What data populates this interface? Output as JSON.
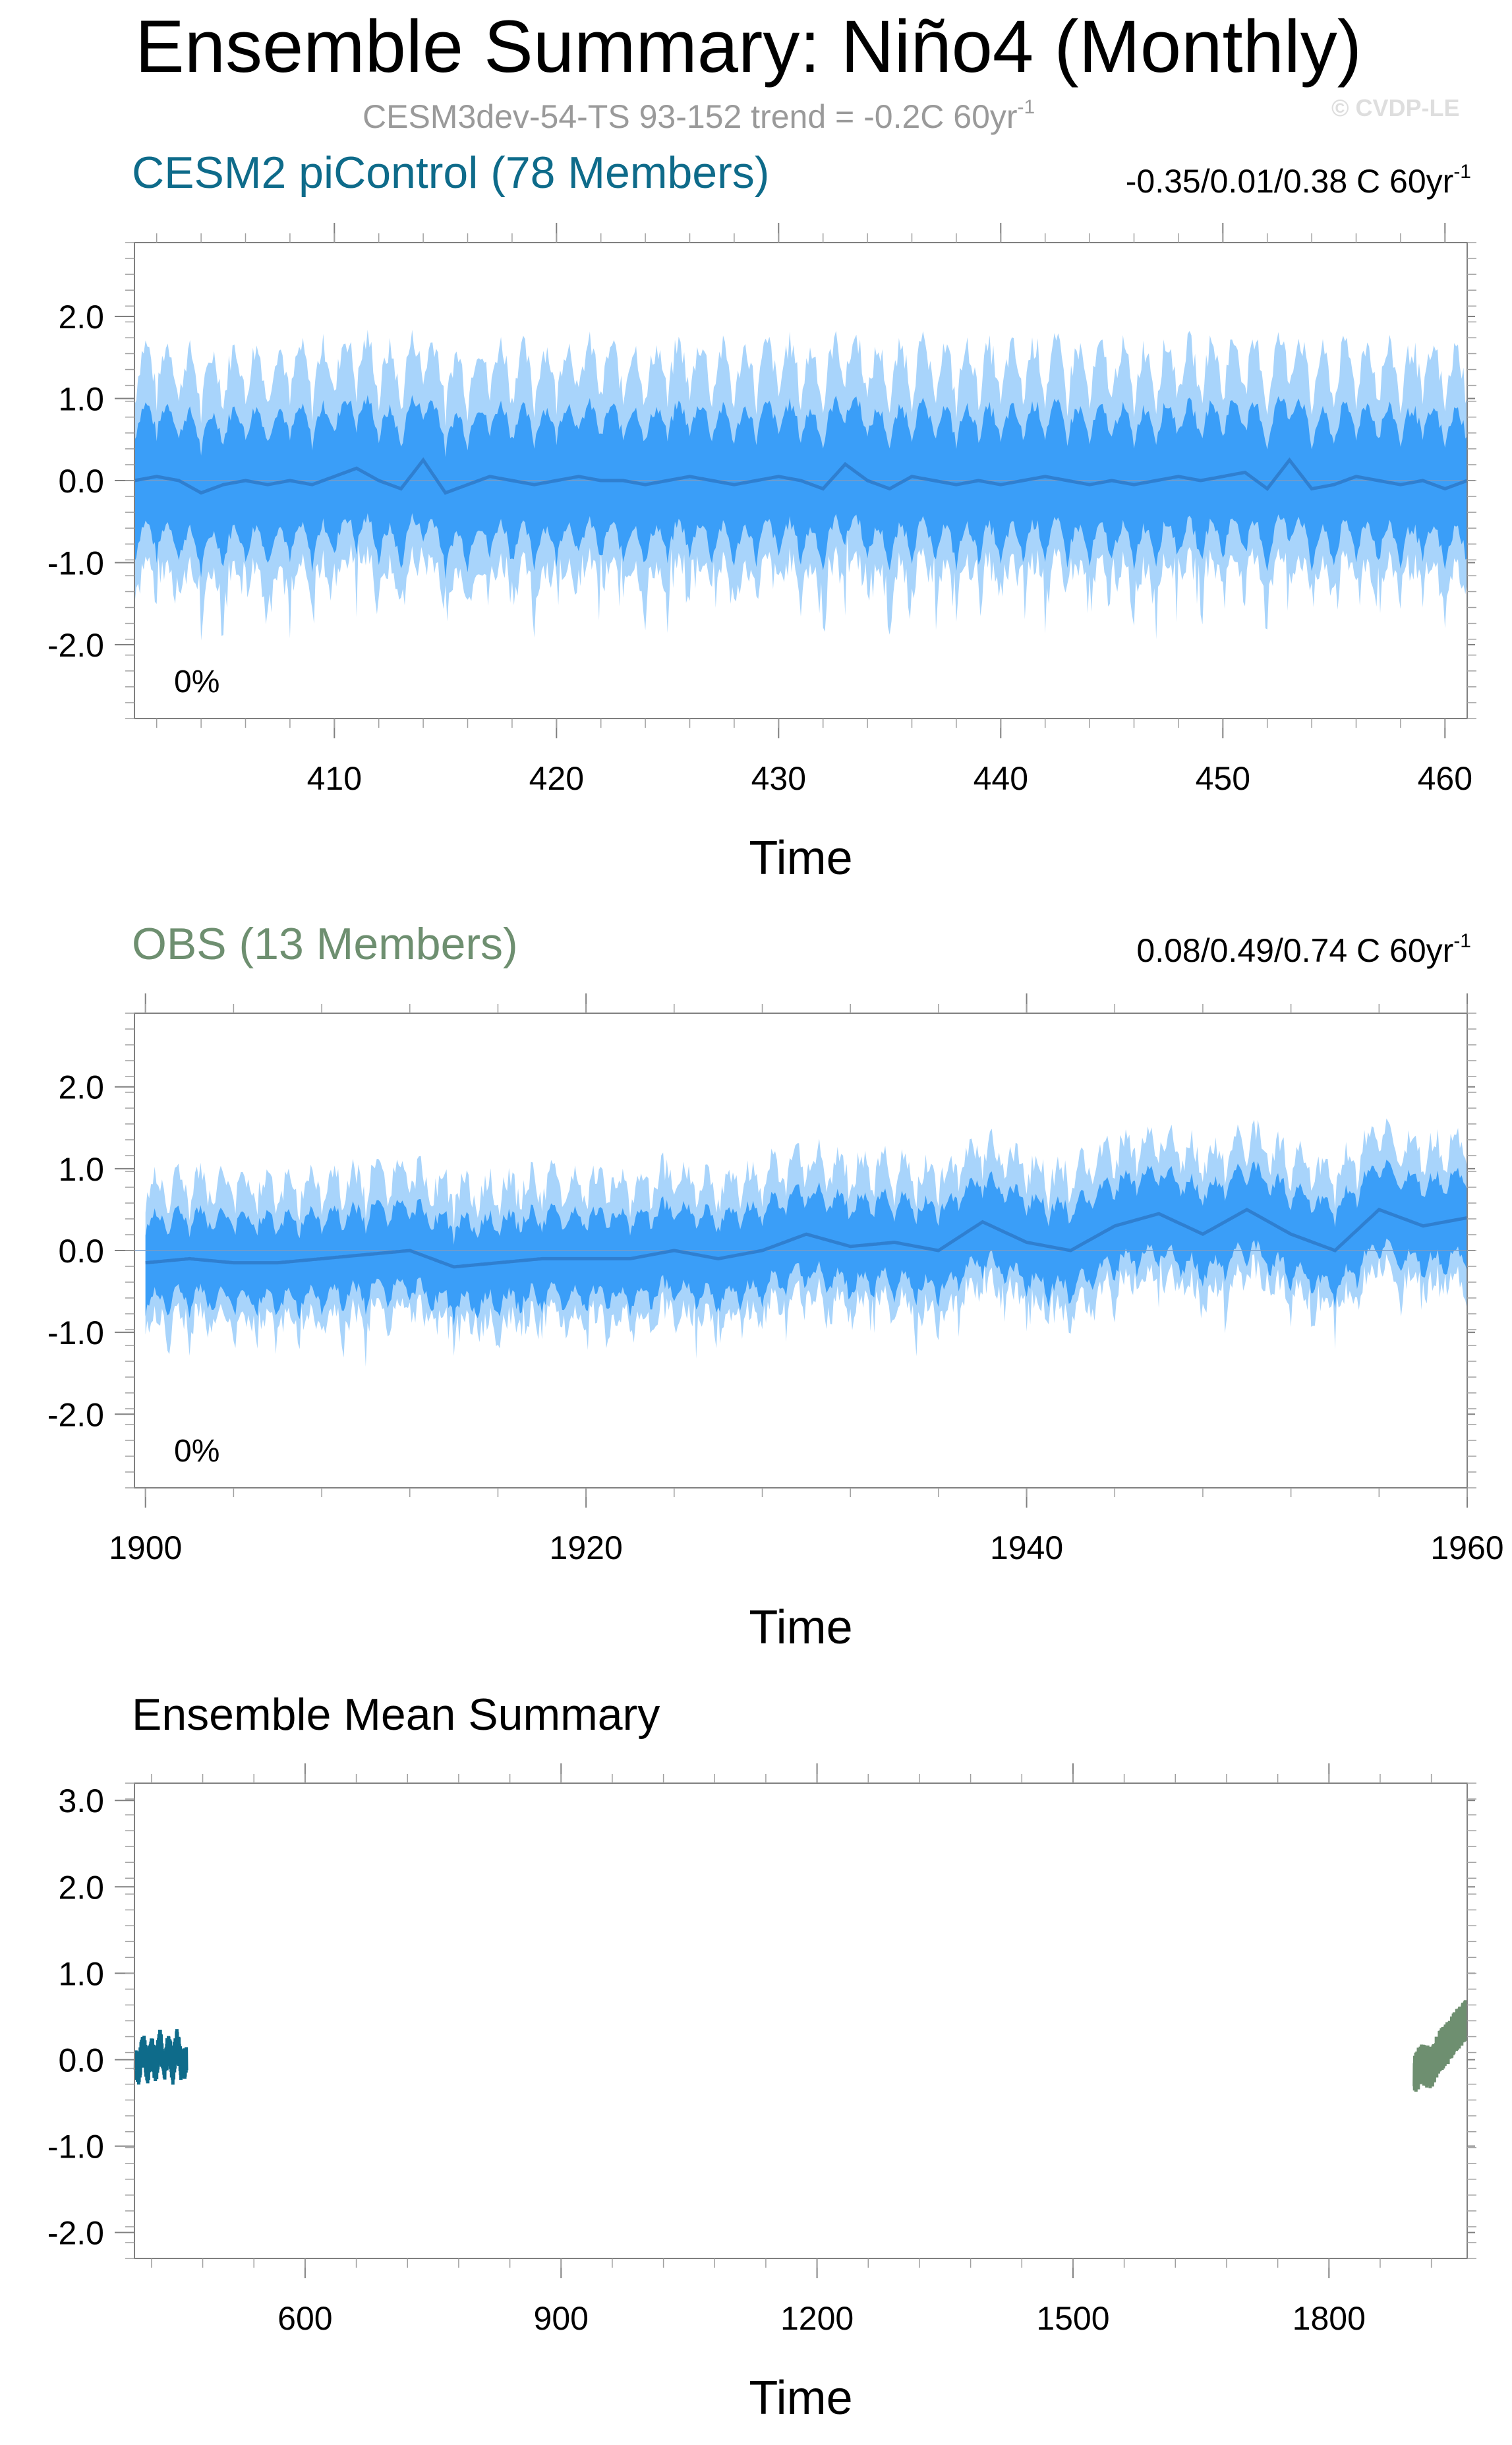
{
  "header": {
    "title": "Ensemble Summary: Niño4 (Monthly)",
    "subtitle_main": "CESM3dev-54-TS 93-152 trend = -0.2C 60yr",
    "subtitle_sup": "-1",
    "watermark": "© CVDP-LE"
  },
  "colors": {
    "band_outer": "#a8d4fb",
    "band_inner": "#3a9ef8",
    "mean_line": "#2f7fd0",
    "cesm_title": "#0e6b8a",
    "obs_title": "#6e8f70"
  },
  "chart_data": [
    {
      "type": "area",
      "title": "CESM2 piControl (78 Members)",
      "stats": "-0.35/0.01/0.38 C 60yr",
      "stats_sup": "-1",
      "percent_label": "0%",
      "xlabel": "Time",
      "ylabel": "",
      "xlim": [
        401,
        461
      ],
      "ylim": [
        -2.9,
        2.9
      ],
      "xticks": [
        410,
        420,
        430,
        440,
        450,
        460
      ],
      "xtick_labels": [
        "410",
        "420",
        "430",
        "440",
        "450",
        "460"
      ],
      "yticks": [
        2.0,
        1.0,
        0.0,
        -1.0,
        -2.0
      ],
      "ytick_labels": [
        "2.0",
        "1.0",
        "0.0",
        "-1.0",
        "-2.0"
      ],
      "zero_line": true,
      "series": [
        {
          "role": "ensemble-mean",
          "x": [
            401,
            402,
            403,
            404,
            405,
            406,
            407,
            408,
            409,
            410,
            411,
            412,
            413,
            414,
            415,
            416,
            417,
            418,
            419,
            420,
            421,
            422,
            423,
            424,
            425,
            426,
            427,
            428,
            429,
            430,
            431,
            432,
            433,
            434,
            435,
            436,
            437,
            438,
            439,
            440,
            441,
            442,
            443,
            444,
            445,
            446,
            447,
            448,
            449,
            450,
            451,
            452,
            453,
            454,
            455,
            456,
            457,
            458,
            459,
            460,
            461
          ],
          "values": [
            0.0,
            0.05,
            0.0,
            -0.15,
            -0.05,
            0.0,
            -0.05,
            0.0,
            -0.05,
            0.05,
            0.15,
            0.0,
            -0.1,
            0.25,
            -0.15,
            -0.05,
            0.05,
            0.0,
            -0.05,
            0.0,
            0.05,
            0.0,
            0.0,
            -0.05,
            0.0,
            0.05,
            0.0,
            -0.05,
            0.0,
            0.05,
            0.0,
            -0.1,
            0.2,
            0.0,
            -0.1,
            0.05,
            0.0,
            -0.05,
            0.0,
            -0.05,
            0.0,
            0.05,
            0.0,
            -0.05,
            0.0,
            -0.05,
            0.0,
            0.05,
            0.0,
            0.05,
            0.1,
            -0.1,
            0.25,
            -0.1,
            -0.05,
            0.05,
            0.0,
            -0.05,
            0.0,
            -0.1,
            0.0
          ],
          "inner_half_width": 0.9,
          "outer_half_width": 1.55
        }
      ]
    },
    {
      "type": "area",
      "title": "OBS (13 Members)",
      "stats": "0.08/0.49/0.74 C 60yr",
      "stats_sup": "-1",
      "percent_label": "0%",
      "xlabel": "Time",
      "ylabel": "",
      "xlim": [
        1899.5,
        1960
      ],
      "ylim": [
        -2.9,
        2.9
      ],
      "xticks": [
        1900,
        1920,
        1940,
        1960
      ],
      "xtick_labels": [
        "1900",
        "1920",
        "1940",
        "1960"
      ],
      "yticks": [
        2.0,
        1.0,
        0.0,
        -1.0,
        -2.0
      ],
      "ytick_labels": [
        "2.0",
        "1.0",
        "0.0",
        "-1.0",
        "-2.0"
      ],
      "zero_line": true,
      "series": [
        {
          "role": "ensemble-mean",
          "x": [
            1900,
            1902,
            1904,
            1906,
            1908,
            1910,
            1912,
            1914,
            1916,
            1918,
            1920,
            1922,
            1924,
            1926,
            1928,
            1930,
            1932,
            1934,
            1936,
            1938,
            1940,
            1942,
            1944,
            1946,
            1948,
            1950,
            1952,
            1954,
            1956,
            1958,
            1960
          ],
          "values": [
            -0.15,
            -0.1,
            -0.15,
            -0.15,
            -0.1,
            -0.05,
            0.0,
            -0.2,
            -0.15,
            -0.1,
            -0.1,
            -0.1,
            0.0,
            -0.1,
            0.0,
            0.2,
            0.05,
            0.1,
            0.0,
            0.35,
            0.1,
            0.0,
            0.3,
            0.45,
            0.2,
            0.5,
            0.2,
            0.0,
            0.5,
            0.3,
            0.4
          ],
          "inner_half_width": 0.6,
          "outer_half_width": 1.0
        }
      ]
    },
    {
      "type": "line",
      "title": "Ensemble Mean Summary",
      "xlabel": "Time",
      "ylabel": "",
      "xlim": [
        400,
        1962
      ],
      "ylim": [
        -2.3,
        3.2
      ],
      "xticks": [
        600,
        900,
        1200,
        1500,
        1800
      ],
      "xtick_labels": [
        "600",
        "900",
        "1200",
        "1500",
        "1800"
      ],
      "yticks": [
        3.0,
        2.0,
        1.0,
        0.0,
        -1.0,
        -2.0
      ],
      "ytick_labels": [
        "3.0",
        "2.0",
        "1.0",
        "0.0",
        "-1.0",
        "-2.0"
      ],
      "series": [
        {
          "name": "CESM2 piControl",
          "color": "#0e6b8a",
          "x": [
            401,
            405,
            410,
            415,
            420,
            425,
            430,
            435,
            440,
            445,
            450,
            455,
            461
          ],
          "values": [
            0.0,
            -0.1,
            0.15,
            -0.1,
            0.1,
            -0.1,
            0.2,
            -0.1,
            0.15,
            -0.1,
            0.2,
            -0.1,
            0.0
          ],
          "amplitude": 0.2
        },
        {
          "name": "OBS",
          "color": "#6e8f70",
          "x": [
            1900,
            1910,
            1920,
            1930,
            1940,
            1950,
            1960
          ],
          "values": [
            -0.15,
            -0.05,
            -0.1,
            0.1,
            0.2,
            0.35,
            0.45
          ],
          "amplitude": 0.25
        }
      ]
    }
  ]
}
